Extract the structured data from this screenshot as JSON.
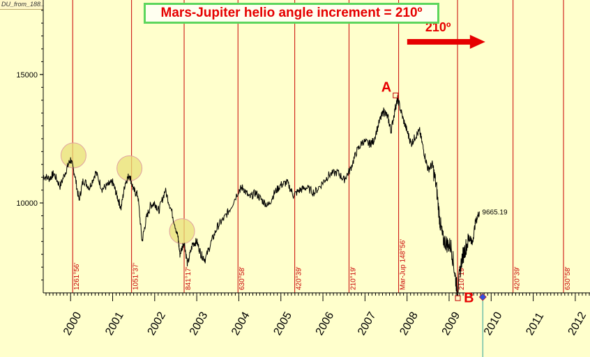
{
  "tab_label": "DU_from_188...",
  "chart_data": {
    "type": "line",
    "title": "Mars-Jupiter helio angle increment = 210º",
    "xlabel": "",
    "ylabel": "",
    "x_ticks": [
      "2000",
      "2001",
      "2002",
      "2003",
      "2004",
      "2005",
      "2006",
      "2007",
      "2008",
      "2009",
      "2010",
      "2011",
      "2012"
    ],
    "y_ticks": [
      10000,
      15000
    ],
    "ylim": [
      6500,
      17900
    ],
    "xlim": [
      1999.35,
      2012.35
    ],
    "last_value_label": "9665.19",
    "series": [
      {
        "values": [
          [
            1999.35,
            11050
          ],
          [
            1999.5,
            10950
          ],
          [
            1999.6,
            11150
          ],
          [
            1999.75,
            10650
          ],
          [
            1999.9,
            11300
          ],
          [
            2000.0,
            11700
          ],
          [
            2000.1,
            11100
          ],
          [
            2000.2,
            10100
          ],
          [
            2000.3,
            10900
          ],
          [
            2000.45,
            10600
          ],
          [
            2000.6,
            11200
          ],
          [
            2000.75,
            10550
          ],
          [
            2000.9,
            10700
          ],
          [
            2001.0,
            10800
          ],
          [
            2001.1,
            10300
          ],
          [
            2001.2,
            9800
          ],
          [
            2001.3,
            10800
          ],
          [
            2001.4,
            11100
          ],
          [
            2001.5,
            10500
          ],
          [
            2001.6,
            10300
          ],
          [
            2001.7,
            8500
          ],
          [
            2001.8,
            9400
          ],
          [
            2001.9,
            9900
          ],
          [
            2002.0,
            10000
          ],
          [
            2002.1,
            9700
          ],
          [
            2002.25,
            10500
          ],
          [
            2002.4,
            9700
          ],
          [
            2002.55,
            8700
          ],
          [
            2002.6,
            8000
          ],
          [
            2002.7,
            8500
          ],
          [
            2002.78,
            7600
          ],
          [
            2002.9,
            8400
          ],
          [
            2003.0,
            8500
          ],
          [
            2003.1,
            8000
          ],
          [
            2003.2,
            7800
          ],
          [
            2003.35,
            8500
          ],
          [
            2003.5,
            9100
          ],
          [
            2003.65,
            9400
          ],
          [
            2003.8,
            9800
          ],
          [
            2004.0,
            10500
          ],
          [
            2004.1,
            10600
          ],
          [
            2004.25,
            10200
          ],
          [
            2004.4,
            10400
          ],
          [
            2004.55,
            10100
          ],
          [
            2004.7,
            9900
          ],
          [
            2004.85,
            10400
          ],
          [
            2005.0,
            10700
          ],
          [
            2005.15,
            10800
          ],
          [
            2005.3,
            10300
          ],
          [
            2005.45,
            10500
          ],
          [
            2005.6,
            10600
          ],
          [
            2005.8,
            10400
          ],
          [
            2006.0,
            10800
          ],
          [
            2006.15,
            11100
          ],
          [
            2006.35,
            11200
          ],
          [
            2006.5,
            10900
          ],
          [
            2006.65,
            11300
          ],
          [
            2006.8,
            12000
          ],
          [
            2006.95,
            12400
          ],
          [
            2007.1,
            12300
          ],
          [
            2007.2,
            12400
          ],
          [
            2007.35,
            13200
          ],
          [
            2007.45,
            13600
          ],
          [
            2007.55,
            13300
          ],
          [
            2007.62,
            12800
          ],
          [
            2007.72,
            13700
          ],
          [
            2007.78,
            14050
          ],
          [
            2007.9,
            13300
          ],
          [
            2008.0,
            12800
          ],
          [
            2008.1,
            12300
          ],
          [
            2008.2,
            12600
          ],
          [
            2008.3,
            12800
          ],
          [
            2008.4,
            12000
          ],
          [
            2008.5,
            11300
          ],
          [
            2008.6,
            11500
          ],
          [
            2008.7,
            10600
          ],
          [
            2008.78,
            9300
          ],
          [
            2008.85,
            8600
          ],
          [
            2008.95,
            8400
          ],
          [
            2009.05,
            8300
          ],
          [
            2009.15,
            7100
          ],
          [
            2009.2,
            6550
          ],
          [
            2009.3,
            7800
          ],
          [
            2009.4,
            8300
          ],
          [
            2009.5,
            8700
          ],
          [
            2009.55,
            8400
          ],
          [
            2009.62,
            9200
          ],
          [
            2009.72,
            9665
          ]
        ]
      }
    ],
    "vertical_markers": [
      {
        "x": 2000.05,
        "label": "1261°56'"
      },
      {
        "x": 2001.45,
        "label": "1051°37'"
      },
      {
        "x": 2002.7,
        "label": "841°17'"
      },
      {
        "x": 2003.98,
        "label": "630°58'"
      },
      {
        "x": 2005.33,
        "label": "420°39'"
      },
      {
        "x": 2006.62,
        "label": "210°19'"
      },
      {
        "x": 2007.8,
        "label": "Mar-Jup 148°56'"
      },
      {
        "x": 2009.2,
        "label": "210°19'"
      },
      {
        "x": 2010.52,
        "label": "420°39'"
      },
      {
        "x": 2011.72,
        "label": "630°58'"
      }
    ],
    "annotations": [
      {
        "label": "A",
        "x": 2007.72,
        "y": 14200
      },
      {
        "label": "B",
        "x": 2009.4,
        "y": 6900
      },
      {
        "label": "210º",
        "x": 2008.5,
        "y": 16300
      }
    ],
    "highlight_circles": [
      {
        "x": 2000.07,
        "y": 11850
      },
      {
        "x": 2001.4,
        "y": 11350
      },
      {
        "x": 2002.65,
        "y": 8900
      }
    ],
    "current_time_x": 2009.8,
    "colors": {
      "price_line": "#000000",
      "marker_line": "#c80000",
      "annotation": "#e60000",
      "highlight": "#e8e07a",
      "title_border": "#5cd65c",
      "background": "#ffffcc",
      "current_time_line": "#2aa198"
    }
  }
}
